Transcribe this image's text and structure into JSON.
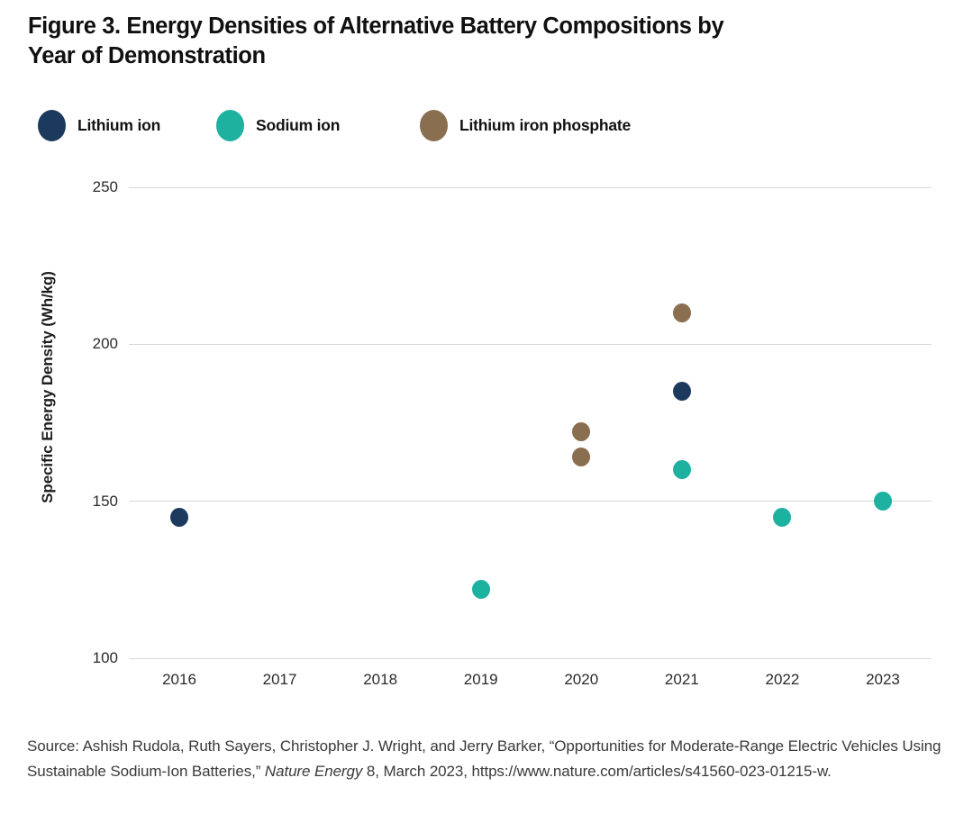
{
  "figure": {
    "title_line1": "Figure 3. Energy Densities of Alternative Battery Compositions by",
    "title_line2": "Year of Demonstration"
  },
  "source": {
    "prefix": "Source: Ashish Rudola, Ruth Sayers, Christopher J. Wright, and Jerry Barker, “Opportunities for Moderate-Range Electric Vehicles Using Sustainable Sodium-Ion Batteries,” ",
    "journal": "Nature Energy",
    "suffix": " 8, March 2023, https://www.nature.com/articles/s41560-023-01215-w."
  },
  "chart_data": {
    "type": "scatter",
    "title": "Figure 3. Energy Densities of Alternative Battery Compositions by Year of Demonstration",
    "xlabel": "",
    "ylabel": "Specific Energy Density (Wh/kg)",
    "x_ticks": [
      2016,
      2017,
      2018,
      2019,
      2020,
      2021,
      2022,
      2023
    ],
    "y_ticks": [
      250,
      200,
      150,
      100
    ],
    "xlim": [
      2015.5,
      2023.5
    ],
    "ylim": [
      100,
      250
    ],
    "grid": "horizontal-only",
    "legend_position": "top-left",
    "series": [
      {
        "name": "Lithium ion",
        "color": "#1b3a5e",
        "points": [
          {
            "year": 2016,
            "value": 145
          },
          {
            "year": 2021,
            "value": 185
          }
        ]
      },
      {
        "name": "Sodium ion",
        "color": "#1db1a0",
        "points": [
          {
            "year": 2019,
            "value": 122
          },
          {
            "year": 2021,
            "value": 160
          },
          {
            "year": 2022,
            "value": 145
          },
          {
            "year": 2023,
            "value": 150
          }
        ]
      },
      {
        "name": "Lithium iron phosphate",
        "color": "#8a6e50",
        "points": [
          {
            "year": 2020,
            "value": 172
          },
          {
            "year": 2020,
            "value": 164
          },
          {
            "year": 2021,
            "value": 210
          }
        ]
      }
    ]
  }
}
